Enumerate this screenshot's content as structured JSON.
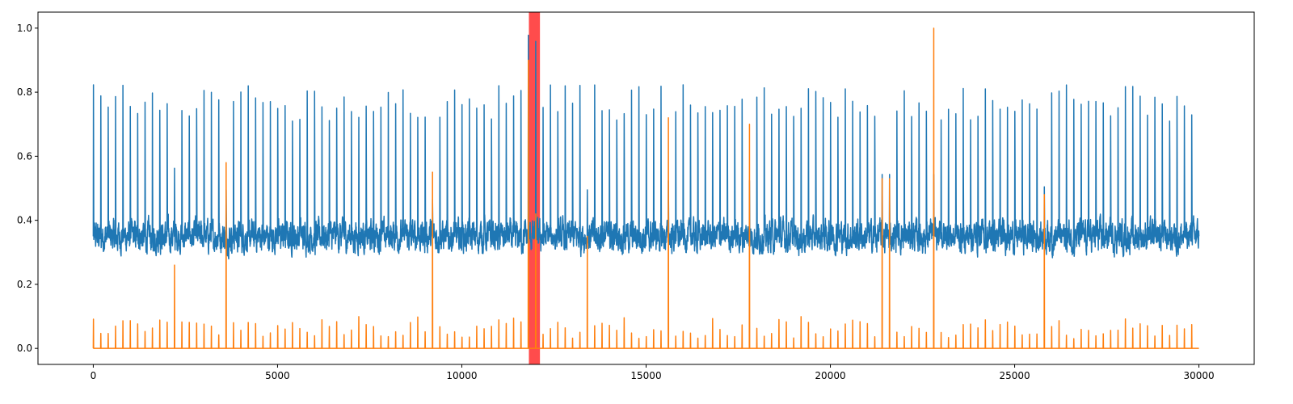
{
  "chart_data": {
    "type": "line",
    "title": "",
    "xlabel": "",
    "ylabel": "",
    "xlim": [
      -1500,
      31500
    ],
    "ylim": [
      -0.05,
      1.05
    ],
    "x_ticks": [
      0,
      5000,
      10000,
      15000,
      20000,
      25000,
      30000
    ],
    "x_tick_labels": [
      "0",
      "5000",
      "10000",
      "15000",
      "20000",
      "25000",
      "30000"
    ],
    "y_ticks": [
      0.0,
      0.2,
      0.4,
      0.6,
      0.8,
      1.0
    ],
    "y_tick_labels": [
      "0.0",
      "0.2",
      "0.4",
      "0.6",
      "0.8",
      "1.0"
    ],
    "grid": false,
    "legend": "none",
    "highlight_region": {
      "x_start": 11820,
      "x_end": 12120,
      "color": "#ff0000",
      "opacity": 0.7
    },
    "series": [
      {
        "color": "#1f77b4",
        "x_range": [
          0,
          30000
        ],
        "samples": 30000,
        "baseline": 0.35,
        "baseline_noise": 0.045,
        "peak_spacing": 200,
        "peak_amplitude_mean": 0.76,
        "peak_amplitude_range": [
          0.72,
          0.84
        ],
        "dropouts": [
          {
            "x": 2260,
            "peak": 0.57
          },
          {
            "x": 3600,
            "peak": 0.5
          },
          {
            "x": 9220,
            "peak": 0.47
          },
          {
            "x": 11850,
            "peak": 1.0
          },
          {
            "x": 12050,
            "peak": 0.98
          },
          {
            "x": 13440,
            "peak": 0.5
          },
          {
            "x": 15620,
            "peak": 0.53
          },
          {
            "x": 17820,
            "peak": 0.53
          },
          {
            "x": 21500,
            "peak": 0.55
          },
          {
            "x": 22820,
            "peak": 0.55
          },
          {
            "x": 25820,
            "peak": 0.51
          }
        ]
      },
      {
        "color": "#ff7f0e",
        "x_range": [
          0,
          30000
        ],
        "samples": 30000,
        "baseline": 0.0,
        "peak_spacing": 200,
        "small_peak_range": [
          0.03,
          0.1
        ],
        "large_peaks": [
          {
            "x": 2260,
            "peak": 0.26
          },
          {
            "x": 3600,
            "peak": 0.58
          },
          {
            "x": 9220,
            "peak": 0.55
          },
          {
            "x": 11850,
            "peak": 0.9
          },
          {
            "x": 12050,
            "peak": 0.42
          },
          {
            "x": 13440,
            "peak": 0.35
          },
          {
            "x": 15620,
            "peak": 0.72
          },
          {
            "x": 17820,
            "peak": 0.7
          },
          {
            "x": 21500,
            "peak": 0.53
          },
          {
            "x": 22820,
            "peak": 1.0
          },
          {
            "x": 25820,
            "peak": 0.48
          }
        ]
      }
    ]
  }
}
